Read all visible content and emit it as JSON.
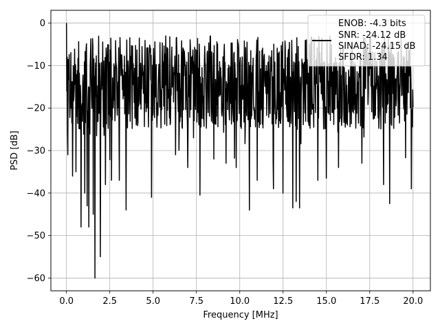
{
  "chart_data": {
    "type": "line",
    "title": "",
    "xlabel": "Frequency [MHz]",
    "ylabel": "PSD [dB]",
    "xlim": [
      -0.9,
      21.0
    ],
    "ylim": [
      -63.0,
      3.0
    ],
    "xticks": [
      0.0,
      2.5,
      5.0,
      7.5,
      10.0,
      12.5,
      15.0,
      17.5,
      20.0
    ],
    "xtick_labels": [
      "0.0",
      "2.5",
      "5.0",
      "7.5",
      "10.0",
      "12.5",
      "15.0",
      "17.5",
      "20.0"
    ],
    "yticks": [
      0,
      -10,
      -20,
      -30,
      -40,
      -50,
      -60
    ],
    "ytick_labels": [
      "0",
      "−10",
      "−20",
      "−30",
      "−40",
      "−50",
      "−60"
    ],
    "grid": true,
    "legend_position": "top-right",
    "line_color": "#000000",
    "series": [
      {
        "legend_lines": [
          "ENOB: -4.3 bits",
          "SNR: -24.12 dB",
          "SINAD: -24.15 dB",
          "SFDR: 1.34"
        ],
        "x_range": [
          0.0,
          20.0
        ],
        "num_points": 1024,
        "peak": {
          "x": 0.0,
          "y": 0.0
        },
        "band_upper_envelope": [
          -10.0,
          -3.0
        ],
        "band_core": [
          -25.0,
          -9.0
        ],
        "deep_dips": [
          {
            "x": 0.08,
            "y": -31.0
          },
          {
            "x": 0.35,
            "y": -36.0
          },
          {
            "x": 0.55,
            "y": -35.0
          },
          {
            "x": 0.85,
            "y": -48.0
          },
          {
            "x": 1.05,
            "y": -40.0
          },
          {
            "x": 1.2,
            "y": -43.0
          },
          {
            "x": 1.3,
            "y": -48.0
          },
          {
            "x": 1.55,
            "y": -45.0
          },
          {
            "x": 1.65,
            "y": -60.0
          },
          {
            "x": 1.95,
            "y": -55.0
          },
          {
            "x": 2.25,
            "y": -38.0
          },
          {
            "x": 2.6,
            "y": -37.0
          },
          {
            "x": 3.05,
            "y": -37.0
          },
          {
            "x": 3.45,
            "y": -44.0
          },
          {
            "x": 4.9,
            "y": -41.0
          },
          {
            "x": 6.3,
            "y": -31.0
          },
          {
            "x": 7.0,
            "y": -34.0
          },
          {
            "x": 7.7,
            "y": -40.5
          },
          {
            "x": 8.5,
            "y": -32.0
          },
          {
            "x": 9.2,
            "y": -33.0
          },
          {
            "x": 9.8,
            "y": -34.0
          },
          {
            "x": 10.55,
            "y": -44.0
          },
          {
            "x": 11.0,
            "y": -37.0
          },
          {
            "x": 11.95,
            "y": -39.0
          },
          {
            "x": 12.5,
            "y": -40.0
          },
          {
            "x": 13.05,
            "y": -43.5
          },
          {
            "x": 13.25,
            "y": -42.0
          },
          {
            "x": 13.45,
            "y": -43.5
          },
          {
            "x": 14.5,
            "y": -37.0
          },
          {
            "x": 15.0,
            "y": -36.5
          },
          {
            "x": 15.7,
            "y": -34.0
          },
          {
            "x": 17.05,
            "y": -33.0
          },
          {
            "x": 18.3,
            "y": -38.0
          },
          {
            "x": 18.65,
            "y": -42.5
          },
          {
            "x": 19.9,
            "y": -39.0
          }
        ]
      }
    ]
  }
}
